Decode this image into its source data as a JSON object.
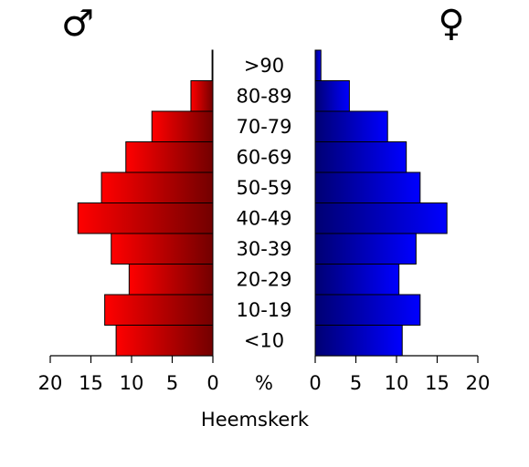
{
  "chart_data": {
    "type": "pyramid",
    "title": "Heemskerk",
    "xlabel": "%",
    "categories": [
      "<10",
      "10-19",
      "20-29",
      "30-39",
      "40-49",
      "50-59",
      "60-69",
      "70-79",
      "80-89",
      ">90"
    ],
    "series": [
      {
        "name": "♂",
        "color": "#ff0000",
        "values": [
          11.9,
          13.3,
          10.3,
          12.5,
          16.6,
          13.7,
          10.7,
          7.5,
          2.7,
          0.1
        ]
      },
      {
        "name": "♀",
        "color": "#0000ff",
        "values": [
          10.7,
          12.9,
          10.3,
          12.4,
          16.2,
          12.9,
          11.2,
          8.9,
          4.2,
          0.7
        ]
      }
    ],
    "xlim": [
      0,
      20
    ],
    "xticks": [
      0,
      5,
      10,
      15,
      20
    ]
  }
}
